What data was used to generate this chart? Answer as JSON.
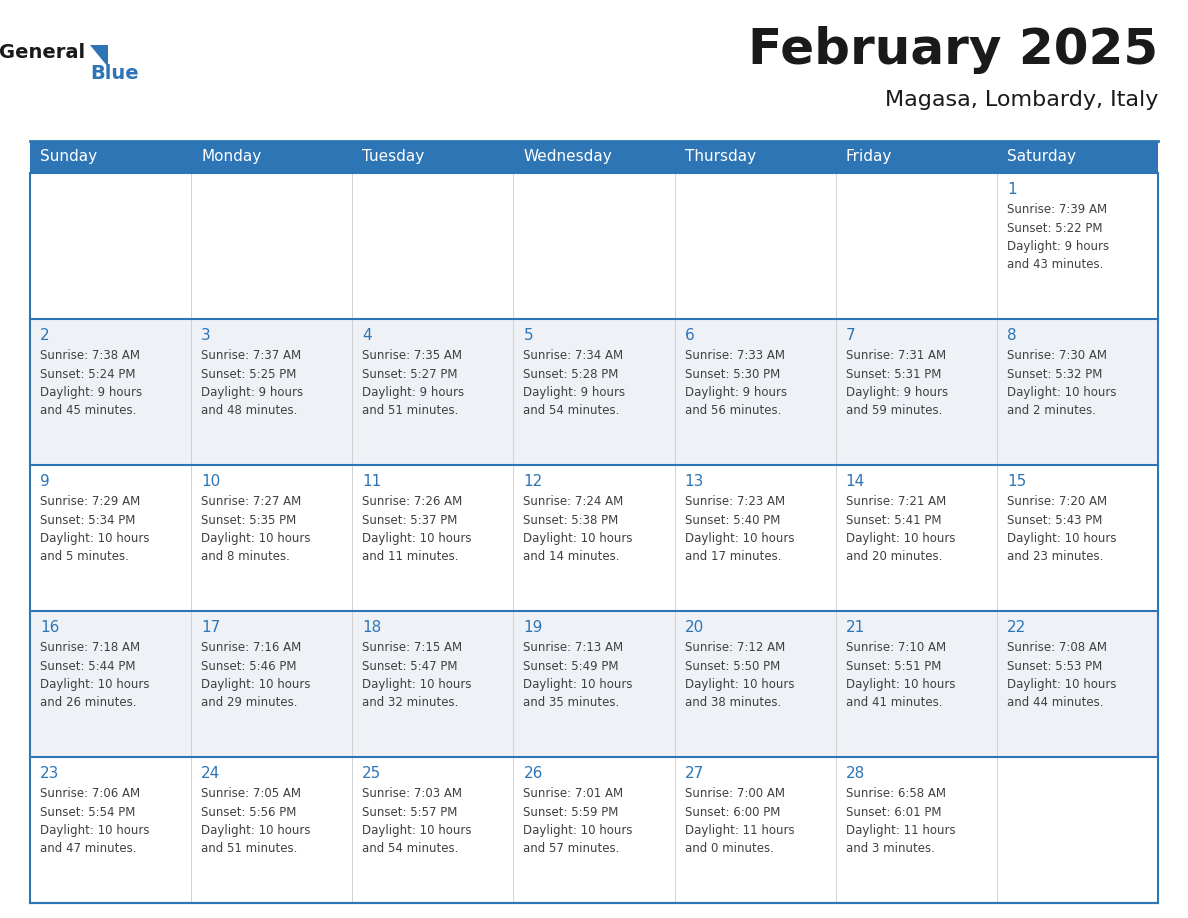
{
  "title": "February 2025",
  "subtitle": "Magasa, Lombardy, Italy",
  "header_bg": "#2E75B6",
  "header_text_color": "#FFFFFF",
  "cell_bg_odd": "#FFFFFF",
  "cell_bg_even": "#EEF2F7",
  "day_number_color": "#2E75B6",
  "text_color": "#404040",
  "border_color": "#2E75B6",
  "thin_border_color": "#CCCCCC",
  "days_of_week": [
    "Sunday",
    "Monday",
    "Tuesday",
    "Wednesday",
    "Thursday",
    "Friday",
    "Saturday"
  ],
  "weeks": [
    [
      {
        "day": "",
        "info": ""
      },
      {
        "day": "",
        "info": ""
      },
      {
        "day": "",
        "info": ""
      },
      {
        "day": "",
        "info": ""
      },
      {
        "day": "",
        "info": ""
      },
      {
        "day": "",
        "info": ""
      },
      {
        "day": "1",
        "info": "Sunrise: 7:39 AM\nSunset: 5:22 PM\nDaylight: 9 hours\nand 43 minutes."
      }
    ],
    [
      {
        "day": "2",
        "info": "Sunrise: 7:38 AM\nSunset: 5:24 PM\nDaylight: 9 hours\nand 45 minutes."
      },
      {
        "day": "3",
        "info": "Sunrise: 7:37 AM\nSunset: 5:25 PM\nDaylight: 9 hours\nand 48 minutes."
      },
      {
        "day": "4",
        "info": "Sunrise: 7:35 AM\nSunset: 5:27 PM\nDaylight: 9 hours\nand 51 minutes."
      },
      {
        "day": "5",
        "info": "Sunrise: 7:34 AM\nSunset: 5:28 PM\nDaylight: 9 hours\nand 54 minutes."
      },
      {
        "day": "6",
        "info": "Sunrise: 7:33 AM\nSunset: 5:30 PM\nDaylight: 9 hours\nand 56 minutes."
      },
      {
        "day": "7",
        "info": "Sunrise: 7:31 AM\nSunset: 5:31 PM\nDaylight: 9 hours\nand 59 minutes."
      },
      {
        "day": "8",
        "info": "Sunrise: 7:30 AM\nSunset: 5:32 PM\nDaylight: 10 hours\nand 2 minutes."
      }
    ],
    [
      {
        "day": "9",
        "info": "Sunrise: 7:29 AM\nSunset: 5:34 PM\nDaylight: 10 hours\nand 5 minutes."
      },
      {
        "day": "10",
        "info": "Sunrise: 7:27 AM\nSunset: 5:35 PM\nDaylight: 10 hours\nand 8 minutes."
      },
      {
        "day": "11",
        "info": "Sunrise: 7:26 AM\nSunset: 5:37 PM\nDaylight: 10 hours\nand 11 minutes."
      },
      {
        "day": "12",
        "info": "Sunrise: 7:24 AM\nSunset: 5:38 PM\nDaylight: 10 hours\nand 14 minutes."
      },
      {
        "day": "13",
        "info": "Sunrise: 7:23 AM\nSunset: 5:40 PM\nDaylight: 10 hours\nand 17 minutes."
      },
      {
        "day": "14",
        "info": "Sunrise: 7:21 AM\nSunset: 5:41 PM\nDaylight: 10 hours\nand 20 minutes."
      },
      {
        "day": "15",
        "info": "Sunrise: 7:20 AM\nSunset: 5:43 PM\nDaylight: 10 hours\nand 23 minutes."
      }
    ],
    [
      {
        "day": "16",
        "info": "Sunrise: 7:18 AM\nSunset: 5:44 PM\nDaylight: 10 hours\nand 26 minutes."
      },
      {
        "day": "17",
        "info": "Sunrise: 7:16 AM\nSunset: 5:46 PM\nDaylight: 10 hours\nand 29 minutes."
      },
      {
        "day": "18",
        "info": "Sunrise: 7:15 AM\nSunset: 5:47 PM\nDaylight: 10 hours\nand 32 minutes."
      },
      {
        "day": "19",
        "info": "Sunrise: 7:13 AM\nSunset: 5:49 PM\nDaylight: 10 hours\nand 35 minutes."
      },
      {
        "day": "20",
        "info": "Sunrise: 7:12 AM\nSunset: 5:50 PM\nDaylight: 10 hours\nand 38 minutes."
      },
      {
        "day": "21",
        "info": "Sunrise: 7:10 AM\nSunset: 5:51 PM\nDaylight: 10 hours\nand 41 minutes."
      },
      {
        "day": "22",
        "info": "Sunrise: 7:08 AM\nSunset: 5:53 PM\nDaylight: 10 hours\nand 44 minutes."
      }
    ],
    [
      {
        "day": "23",
        "info": "Sunrise: 7:06 AM\nSunset: 5:54 PM\nDaylight: 10 hours\nand 47 minutes."
      },
      {
        "day": "24",
        "info": "Sunrise: 7:05 AM\nSunset: 5:56 PM\nDaylight: 10 hours\nand 51 minutes."
      },
      {
        "day": "25",
        "info": "Sunrise: 7:03 AM\nSunset: 5:57 PM\nDaylight: 10 hours\nand 54 minutes."
      },
      {
        "day": "26",
        "info": "Sunrise: 7:01 AM\nSunset: 5:59 PM\nDaylight: 10 hours\nand 57 minutes."
      },
      {
        "day": "27",
        "info": "Sunrise: 7:00 AM\nSunset: 6:00 PM\nDaylight: 11 hours\nand 0 minutes."
      },
      {
        "day": "28",
        "info": "Sunrise: 6:58 AM\nSunset: 6:01 PM\nDaylight: 11 hours\nand 3 minutes."
      },
      {
        "day": "",
        "info": ""
      }
    ]
  ],
  "logo_text_general": "General",
  "logo_text_blue": "Blue",
  "logo_color_general": "#1a1a1a",
  "logo_color_blue": "#2E75B6",
  "logo_triangle_color": "#2E75B6",
  "title_fontsize": 36,
  "subtitle_fontsize": 16,
  "dow_fontsize": 11,
  "day_num_fontsize": 11,
  "info_fontsize": 8.5
}
